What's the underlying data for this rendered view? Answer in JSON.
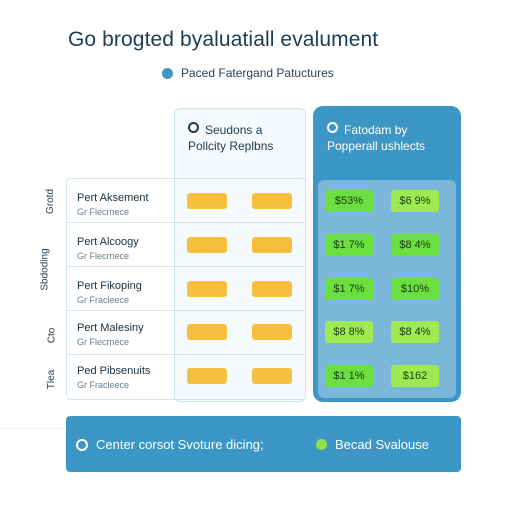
{
  "title": "Go brogted byaluatiall evalument",
  "legend": {
    "label": "Paced Fatergand Patuctures"
  },
  "columns": [
    {
      "line1": "Seudons a",
      "line2": "Pollcity Replbns"
    },
    {
      "line1": "Fatodam by",
      "line2": "Popperall ushlects"
    }
  ],
  "side_labels": [
    "Grotd",
    "Sbdoding",
    "Cto",
    "Tlea"
  ],
  "rows": [
    {
      "name": "Pert Aksement",
      "sub": "Gr Flecrnece",
      "value_a": "$53%",
      "value_b": "$6 9%"
    },
    {
      "name": "Pert Alcoogy",
      "sub": "Gr Flecrnece",
      "value_a": "$1 7%",
      "value_b": "$8 4%"
    },
    {
      "name": "Pert Fikoping",
      "sub": "Gr Fracleece",
      "value_a": "$1 7%",
      "value_b": "$10%"
    },
    {
      "name": "Pert Malesiny",
      "sub": "Gr Flecrnece",
      "value_a": "$8 8%",
      "value_b": "$8 4%"
    },
    {
      "name": "Ped Pibsenuits",
      "sub": "Gr Fracleece",
      "value_a": "$1 1%",
      "value_b": "$162"
    }
  ],
  "footer": {
    "left": "Center corsot Svoture dicing;",
    "right": "Becad Svalouse"
  },
  "colors": {
    "accent_blue": "#3d97c6",
    "amber": "#f6c03e",
    "green": "#6cde3f"
  }
}
